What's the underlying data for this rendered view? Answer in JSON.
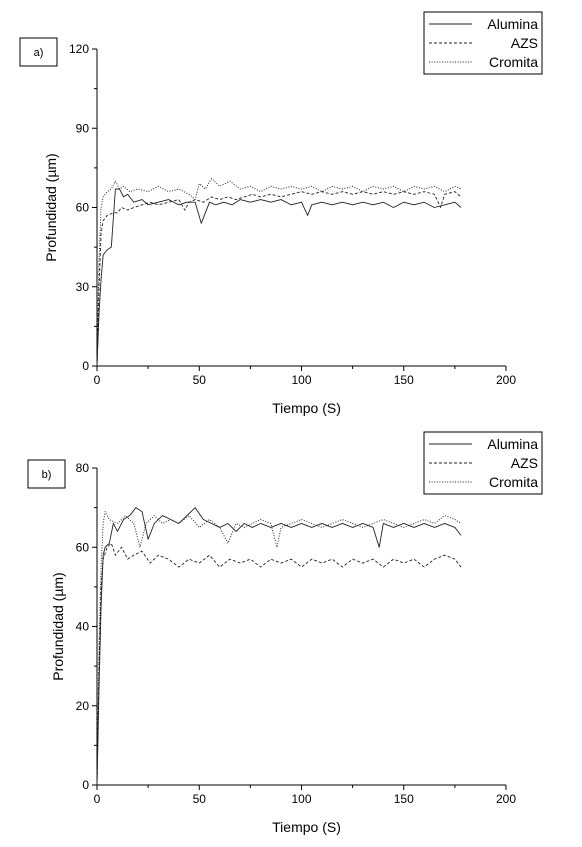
{
  "chart_data": [
    {
      "type": "line",
      "panel_label": "a)",
      "xlabel": "Tiempo (S)",
      "ylabel": "Profundidad (µm)",
      "xlim": [
        0,
        200
      ],
      "ylim": [
        0,
        120
      ],
      "xticks": [
        0,
        50,
        100,
        150,
        200
      ],
      "yticks": [
        0,
        30,
        60,
        90,
        120
      ],
      "grid": false,
      "legend_position": "top-right",
      "series": [
        {
          "name": "Alumina",
          "style": "solid",
          "points": [
            [
              0,
              0
            ],
            [
              1,
              20
            ],
            [
              2,
              33
            ],
            [
              3,
              42
            ],
            [
              5,
              44
            ],
            [
              7,
              45
            ],
            [
              9,
              67
            ],
            [
              11,
              67
            ],
            [
              13,
              64
            ],
            [
              15,
              65
            ],
            [
              18,
              62
            ],
            [
              22,
              63
            ],
            [
              25,
              61
            ],
            [
              30,
              62
            ],
            [
              35,
              63
            ],
            [
              40,
              61
            ],
            [
              44,
              62
            ],
            [
              48,
              62
            ],
            [
              51,
              54
            ],
            [
              53,
              58
            ],
            [
              55,
              62
            ],
            [
              58,
              61
            ],
            [
              62,
              62
            ],
            [
              66,
              61
            ],
            [
              70,
              63
            ],
            [
              75,
              62
            ],
            [
              80,
              63
            ],
            [
              85,
              62
            ],
            [
              90,
              63
            ],
            [
              95,
              61
            ],
            [
              100,
              62
            ],
            [
              103,
              57
            ],
            [
              105,
              61
            ],
            [
              110,
              62
            ],
            [
              115,
              61
            ],
            [
              120,
              62
            ],
            [
              125,
              61
            ],
            [
              130,
              62
            ],
            [
              135,
              61
            ],
            [
              140,
              62
            ],
            [
              145,
              60
            ],
            [
              150,
              62
            ],
            [
              155,
              61
            ],
            [
              160,
              62
            ],
            [
              165,
              60
            ],
            [
              170,
              61
            ],
            [
              175,
              62
            ],
            [
              178,
              60
            ]
          ]
        },
        {
          "name": "AZS",
          "style": "dashed",
          "points": [
            [
              0,
              0
            ],
            [
              1,
              30
            ],
            [
              2,
              50
            ],
            [
              3,
              55
            ],
            [
              5,
              57
            ],
            [
              8,
              58
            ],
            [
              10,
              58
            ],
            [
              12,
              60
            ],
            [
              15,
              59
            ],
            [
              18,
              60
            ],
            [
              22,
              61
            ],
            [
              26,
              62
            ],
            [
              30,
              61
            ],
            [
              35,
              62
            ],
            [
              40,
              63
            ],
            [
              43,
              59
            ],
            [
              45,
              62
            ],
            [
              48,
              63
            ],
            [
              52,
              62
            ],
            [
              56,
              64
            ],
            [
              60,
              63
            ],
            [
              64,
              64
            ],
            [
              68,
              63
            ],
            [
              72,
              64
            ],
            [
              76,
              65
            ],
            [
              80,
              64
            ],
            [
              85,
              65
            ],
            [
              90,
              64
            ],
            [
              95,
              65
            ],
            [
              100,
              66
            ],
            [
              105,
              65
            ],
            [
              110,
              66
            ],
            [
              115,
              65
            ],
            [
              120,
              66
            ],
            [
              125,
              65
            ],
            [
              130,
              66
            ],
            [
              135,
              65
            ],
            [
              140,
              66
            ],
            [
              145,
              65
            ],
            [
              150,
              66
            ],
            [
              155,
              65
            ],
            [
              160,
              66
            ],
            [
              165,
              65
            ],
            [
              168,
              60
            ],
            [
              170,
              65
            ],
            [
              175,
              66
            ],
            [
              178,
              64
            ]
          ]
        },
        {
          "name": "Cromita",
          "style": "dotted",
          "points": [
            [
              0,
              0
            ],
            [
              1,
              40
            ],
            [
              2,
              60
            ],
            [
              3,
              64
            ],
            [
              5,
              66
            ],
            [
              7,
              67
            ],
            [
              9,
              70
            ],
            [
              11,
              67
            ],
            [
              13,
              68
            ],
            [
              16,
              66
            ],
            [
              20,
              67
            ],
            [
              25,
              66
            ],
            [
              30,
              68
            ],
            [
              35,
              66
            ],
            [
              40,
              67
            ],
            [
              45,
              65
            ],
            [
              48,
              63
            ],
            [
              50,
              69
            ],
            [
              53,
              67
            ],
            [
              56,
              71
            ],
            [
              60,
              68
            ],
            [
              65,
              70
            ],
            [
              70,
              67
            ],
            [
              75,
              68
            ],
            [
              80,
              66
            ],
            [
              85,
              68
            ],
            [
              90,
              67
            ],
            [
              95,
              68
            ],
            [
              100,
              67
            ],
            [
              105,
              68
            ],
            [
              110,
              66
            ],
            [
              115,
              68
            ],
            [
              120,
              67
            ],
            [
              125,
              68
            ],
            [
              130,
              66
            ],
            [
              135,
              68
            ],
            [
              140,
              67
            ],
            [
              145,
              68
            ],
            [
              150,
              66
            ],
            [
              155,
              68
            ],
            [
              160,
              67
            ],
            [
              165,
              68
            ],
            [
              170,
              66
            ],
            [
              175,
              68
            ],
            [
              178,
              67
            ]
          ]
        }
      ]
    },
    {
      "type": "line",
      "panel_label": "b)",
      "xlabel": "Tiempo (S)",
      "ylabel": "Profundidad (µm)",
      "xlim": [
        0,
        200
      ],
      "ylim": [
        0,
        80
      ],
      "xticks": [
        0,
        50,
        100,
        150,
        200
      ],
      "yticks": [
        0,
        20,
        40,
        60,
        80
      ],
      "grid": false,
      "legend_position": "top-right",
      "series": [
        {
          "name": "Alumina",
          "style": "solid",
          "points": [
            [
              0,
              0
            ],
            [
              1,
              25
            ],
            [
              2,
              45
            ],
            [
              3,
              58
            ],
            [
              4,
              60
            ],
            [
              6,
              61
            ],
            [
              8,
              66
            ],
            [
              10,
              64
            ],
            [
              13,
              67
            ],
            [
              16,
              68
            ],
            [
              19,
              70
            ],
            [
              22,
              69
            ],
            [
              25,
              62
            ],
            [
              28,
              66
            ],
            [
              32,
              68
            ],
            [
              36,
              67
            ],
            [
              40,
              66
            ],
            [
              44,
              68
            ],
            [
              48,
              70
            ],
            [
              52,
              67
            ],
            [
              56,
              66
            ],
            [
              60,
              65
            ],
            [
              64,
              66
            ],
            [
              68,
              64
            ],
            [
              72,
              66
            ],
            [
              76,
              65
            ],
            [
              80,
              66
            ],
            [
              85,
              65
            ],
            [
              90,
              66
            ],
            [
              95,
              65
            ],
            [
              100,
              66
            ],
            [
              105,
              65
            ],
            [
              110,
              66
            ],
            [
              115,
              65
            ],
            [
              120,
              66
            ],
            [
              125,
              65
            ],
            [
              130,
              66
            ],
            [
              135,
              65
            ],
            [
              138,
              60
            ],
            [
              140,
              66
            ],
            [
              145,
              65
            ],
            [
              150,
              66
            ],
            [
              155,
              65
            ],
            [
              160,
              66
            ],
            [
              165,
              65
            ],
            [
              170,
              66
            ],
            [
              175,
              65
            ],
            [
              178,
              63
            ]
          ]
        },
        {
          "name": "AZS",
          "style": "dashed",
          "points": [
            [
              0,
              0
            ],
            [
              1,
              30
            ],
            [
              2,
              50
            ],
            [
              3,
              57
            ],
            [
              5,
              60
            ],
            [
              7,
              61
            ],
            [
              9,
              58
            ],
            [
              12,
              60
            ],
            [
              15,
              57
            ],
            [
              18,
              58
            ],
            [
              22,
              59
            ],
            [
              26,
              56
            ],
            [
              30,
              58
            ],
            [
              35,
              57
            ],
            [
              40,
              55
            ],
            [
              45,
              57
            ],
            [
              50,
              56
            ],
            [
              55,
              58
            ],
            [
              60,
              55
            ],
            [
              65,
              57
            ],
            [
              70,
              56
            ],
            [
              75,
              57
            ],
            [
              80,
              55
            ],
            [
              85,
              57
            ],
            [
              90,
              56
            ],
            [
              95,
              57
            ],
            [
              100,
              55
            ],
            [
              105,
              57
            ],
            [
              110,
              56
            ],
            [
              115,
              57
            ],
            [
              120,
              55
            ],
            [
              125,
              57
            ],
            [
              130,
              56
            ],
            [
              135,
              57
            ],
            [
              140,
              55
            ],
            [
              145,
              57
            ],
            [
              150,
              56
            ],
            [
              155,
              57
            ],
            [
              160,
              55
            ],
            [
              165,
              57
            ],
            [
              170,
              58
            ],
            [
              175,
              57
            ],
            [
              178,
              55
            ]
          ]
        },
        {
          "name": "Cromita",
          "style": "dotted",
          "points": [
            [
              0,
              0
            ],
            [
              1,
              35
            ],
            [
              2,
              55
            ],
            [
              3,
              66
            ],
            [
              4,
              69
            ],
            [
              6,
              67
            ],
            [
              10,
              66
            ],
            [
              14,
              68
            ],
            [
              18,
              66
            ],
            [
              21,
              60
            ],
            [
              24,
              66
            ],
            [
              28,
              68
            ],
            [
              32,
              66
            ],
            [
              36,
              67
            ],
            [
              40,
              66
            ],
            [
              45,
              68
            ],
            [
              50,
              65
            ],
            [
              55,
              67
            ],
            [
              60,
              65
            ],
            [
              64,
              61
            ],
            [
              68,
              66
            ],
            [
              72,
              65
            ],
            [
              76,
              66
            ],
            [
              80,
              67
            ],
            [
              85,
              66
            ],
            [
              88,
              60
            ],
            [
              90,
              65
            ],
            [
              95,
              66
            ],
            [
              100,
              67
            ],
            [
              105,
              66
            ],
            [
              110,
              65
            ],
            [
              115,
              66
            ],
            [
              120,
              67
            ],
            [
              125,
              66
            ],
            [
              130,
              65
            ],
            [
              135,
              66
            ],
            [
              140,
              67
            ],
            [
              145,
              66
            ],
            [
              150,
              65
            ],
            [
              155,
              66
            ],
            [
              160,
              67
            ],
            [
              165,
              66
            ],
            [
              170,
              68
            ],
            [
              175,
              67
            ],
            [
              178,
              66
            ]
          ]
        }
      ]
    }
  ]
}
